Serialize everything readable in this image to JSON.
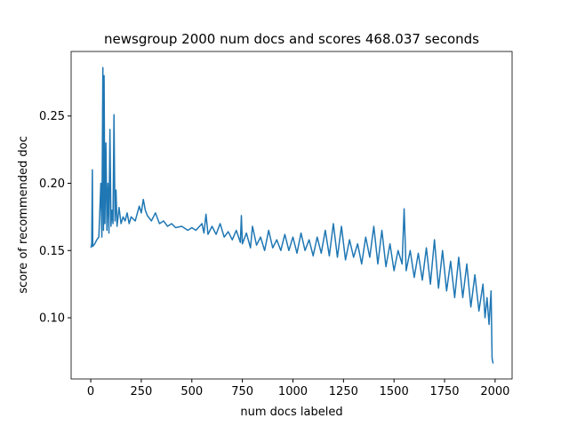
{
  "chart_data": {
    "type": "line",
    "title": "newsgroup 2000 num docs and scores 468.037 seconds",
    "xlabel": "num docs labeled",
    "ylabel": "score of recommended doc",
    "x": [
      1,
      5,
      8,
      10,
      20,
      30,
      40,
      50,
      55,
      60,
      63,
      66,
      70,
      75,
      80,
      85,
      90,
      95,
      100,
      105,
      110,
      115,
      120,
      125,
      130,
      140,
      150,
      160,
      170,
      180,
      190,
      200,
      220,
      240,
      250,
      260,
      270,
      280,
      300,
      320,
      340,
      360,
      380,
      400,
      420,
      450,
      480,
      500,
      520,
      550,
      560,
      570,
      580,
      600,
      620,
      640,
      660,
      680,
      700,
      720,
      740,
      745,
      750,
      770,
      790,
      800,
      820,
      840,
      860,
      880,
      900,
      920,
      940,
      960,
      980,
      1000,
      1020,
      1040,
      1060,
      1080,
      1100,
      1120,
      1140,
      1160,
      1180,
      1200,
      1220,
      1240,
      1260,
      1280,
      1300,
      1320,
      1340,
      1360,
      1380,
      1400,
      1420,
      1440,
      1460,
      1480,
      1500,
      1520,
      1540,
      1550,
      1560,
      1580,
      1600,
      1620,
      1640,
      1660,
      1680,
      1700,
      1720,
      1740,
      1760,
      1780,
      1800,
      1820,
      1840,
      1860,
      1880,
      1900,
      1920,
      1940,
      1950,
      1960,
      1970,
      1980,
      1985,
      1990
    ],
    "series": [
      {
        "name": "score",
        "color": "#1f77b4",
        "values": [
          0.152,
          0.155,
          0.21,
          0.153,
          0.155,
          0.158,
          0.16,
          0.2,
          0.16,
          0.286,
          0.165,
          0.28,
          0.17,
          0.23,
          0.165,
          0.2,
          0.163,
          0.24,
          0.168,
          0.18,
          0.17,
          0.251,
          0.172,
          0.195,
          0.168,
          0.182,
          0.17,
          0.175,
          0.172,
          0.178,
          0.17,
          0.175,
          0.172,
          0.183,
          0.178,
          0.188,
          0.18,
          0.176,
          0.172,
          0.178,
          0.17,
          0.172,
          0.168,
          0.17,
          0.167,
          0.168,
          0.165,
          0.167,
          0.165,
          0.17,
          0.163,
          0.177,
          0.162,
          0.168,
          0.162,
          0.17,
          0.16,
          0.164,
          0.158,
          0.165,
          0.156,
          0.176,
          0.155,
          0.163,
          0.152,
          0.168,
          0.154,
          0.16,
          0.15,
          0.165,
          0.152,
          0.158,
          0.15,
          0.162,
          0.15,
          0.16,
          0.148,
          0.163,
          0.15,
          0.158,
          0.146,
          0.16,
          0.148,
          0.165,
          0.146,
          0.17,
          0.145,
          0.168,
          0.143,
          0.158,
          0.145,
          0.155,
          0.14,
          0.16,
          0.145,
          0.168,
          0.14,
          0.165,
          0.138,
          0.155,
          0.135,
          0.15,
          0.14,
          0.181,
          0.135,
          0.15,
          0.13,
          0.148,
          0.128,
          0.152,
          0.125,
          0.158,
          0.122,
          0.15,
          0.12,
          0.142,
          0.115,
          0.145,
          0.115,
          0.14,
          0.108,
          0.132,
          0.105,
          0.125,
          0.1,
          0.115,
          0.095,
          0.12,
          0.07,
          0.066
        ]
      }
    ],
    "xlim": [
      -97,
      2084
    ],
    "ylim": [
      0.0545,
      0.298
    ],
    "xticks": [
      0,
      250,
      500,
      750,
      1000,
      1250,
      1500,
      1750,
      2000
    ],
    "yticks": [
      {
        "value": 0.1,
        "label": "0.10"
      },
      0.15,
      {
        "value": 0.2,
        "label": "0.20"
      },
      0.25
    ]
  }
}
